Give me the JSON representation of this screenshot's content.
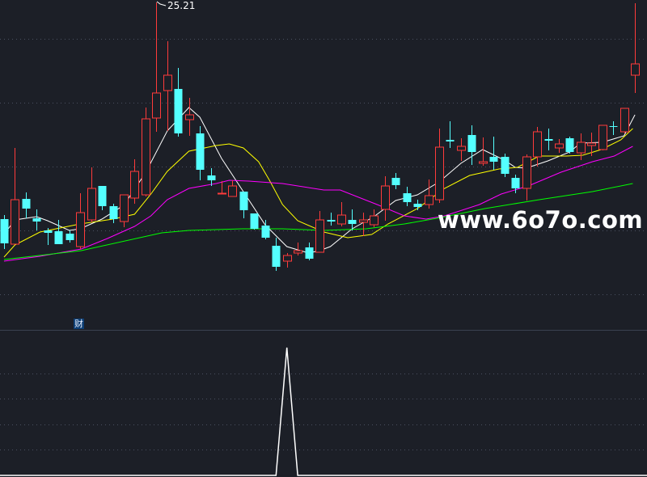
{
  "chart_data": {
    "type": "candlestick",
    "title": "",
    "up_color": "#ff3b3b",
    "down_color": "#54ffff",
    "max_label": "25.21",
    "grid": true,
    "candles": [
      [
        11.81,
        10.31,
        12.06,
        9.96
      ],
      [
        10.26,
        13.01,
        16.21,
        10.26
      ],
      [
        13.06,
        12.46,
        13.46,
        11.86
      ],
      [
        11.86,
        11.66,
        12.41,
        11.11
      ],
      [
        11.11,
        10.96,
        11.26,
        10.21
      ],
      [
        11.06,
        10.26,
        11.76,
        10.26
      ],
      [
        10.91,
        10.51,
        11.11,
        10.36
      ],
      [
        10.11,
        12.21,
        13.41,
        9.96
      ],
      [
        11.76,
        13.71,
        15.01,
        11.61
      ],
      [
        13.86,
        12.61,
        13.86,
        12.36
      ],
      [
        12.61,
        11.81,
        12.76,
        11.56
      ],
      [
        11.66,
        13.31,
        13.31,
        11.31
      ],
      [
        13.11,
        14.76,
        15.51,
        12.76
      ],
      [
        13.31,
        18.01,
        18.71,
        13.21
      ],
      [
        18.06,
        19.61,
        25.21,
        17.21
      ],
      [
        19.76,
        20.71,
        22.81,
        17.26
      ],
      [
        19.86,
        17.11,
        21.16,
        16.91
      ],
      [
        17.96,
        18.26,
        19.31,
        16.96
      ],
      [
        17.11,
        14.86,
        17.56,
        14.21
      ],
      [
        14.51,
        14.21,
        14.96,
        13.86
      ],
      [
        13.36,
        13.41,
        14.16,
        13.36
      ],
      [
        13.21,
        13.86,
        14.21,
        13.21
      ],
      [
        13.51,
        12.36,
        13.51,
        11.86
      ],
      [
        12.16,
        11.21,
        12.16,
        11.16
      ],
      [
        11.41,
        10.66,
        11.76,
        10.56
      ],
      [
        10.16,
        8.86,
        10.66,
        8.61
      ],
      [
        9.21,
        9.56,
        9.71,
        8.81
      ],
      [
        9.71,
        9.86,
        10.36,
        9.56
      ],
      [
        10.06,
        9.36,
        10.36,
        9.26
      ],
      [
        9.76,
        11.76,
        12.31,
        9.76
      ],
      [
        11.76,
        11.66,
        12.21,
        11.41
      ],
      [
        11.51,
        12.06,
        12.86,
        11.36
      ],
      [
        11.76,
        11.51,
        12.41,
        11.11
      ],
      [
        11.61,
        11.76,
        12.21,
        10.76
      ],
      [
        11.46,
        12.01,
        12.41,
        11.31
      ],
      [
        12.41,
        13.86,
        14.46,
        11.71
      ],
      [
        14.36,
        13.91,
        14.66,
        13.66
      ],
      [
        13.41,
        12.86,
        13.81,
        12.61
      ],
      [
        12.76,
        12.56,
        13.01,
        12.36
      ],
      [
        12.71,
        13.26,
        14.26,
        12.46
      ],
      [
        13.01,
        16.26,
        17.41,
        12.81
      ],
      [
        16.71,
        16.61,
        17.86,
        16.21
      ],
      [
        16.06,
        16.31,
        16.81,
        15.41
      ],
      [
        17.01,
        15.96,
        17.61,
        15.16
      ],
      [
        15.26,
        15.36,
        16.86,
        15.11
      ],
      [
        15.66,
        15.36,
        16.91,
        14.86
      ],
      [
        15.66,
        14.61,
        15.86,
        14.41
      ],
      [
        14.36,
        13.71,
        14.56,
        13.41
      ],
      [
        13.71,
        15.66,
        15.81,
        12.96
      ],
      [
        15.66,
        17.21,
        17.51,
        15.06
      ],
      [
        16.76,
        16.66,
        17.41,
        16.06
      ],
      [
        16.21,
        16.46,
        16.76,
        15.91
      ],
      [
        16.81,
        15.96,
        16.91,
        15.86
      ],
      [
        15.91,
        16.56,
        17.11,
        15.46
      ],
      [
        16.36,
        16.51,
        17.16,
        15.71
      ],
      [
        16.11,
        17.61,
        17.61,
        16.06
      ],
      [
        17.56,
        17.51,
        17.86,
        17.01
      ],
      [
        17.21,
        18.66,
        18.66,
        17.11
      ],
      [
        20.71,
        21.41,
        25.16,
        19.61
      ]
    ],
    "ma_lines": [
      {
        "color": "#ffffff",
        "points": [
          [
            0,
            10.86
          ],
          [
            1,
            11.76
          ],
          [
            3,
            11.96
          ],
          [
            4,
            11.71
          ],
          [
            6,
            11.11
          ],
          [
            7,
            11.21
          ],
          [
            9,
            11.81
          ],
          [
            11,
            12.66
          ],
          [
            13,
            14.66
          ],
          [
            15,
            17.26
          ],
          [
            17,
            18.71
          ],
          [
            18,
            18.11
          ],
          [
            20,
            15.56
          ],
          [
            22,
            13.51
          ],
          [
            24,
            11.46
          ],
          [
            26,
            10.11
          ],
          [
            28,
            9.71
          ],
          [
            29,
            9.86
          ],
          [
            30,
            10.11
          ],
          [
            32,
            11.21
          ],
          [
            34,
            11.96
          ],
          [
            36,
            12.96
          ],
          [
            38,
            13.31
          ],
          [
            40,
            14.11
          ],
          [
            42,
            15.26
          ],
          [
            44,
            16.11
          ],
          [
            46,
            15.46
          ],
          [
            47,
            15.01
          ],
          [
            48,
            14.96
          ],
          [
            50,
            15.41
          ],
          [
            52,
            15.96
          ],
          [
            53,
            16.51
          ],
          [
            55,
            16.56
          ],
          [
            57,
            16.96
          ],
          [
            58,
            18.26
          ]
        ]
      },
      {
        "color": "#ffff00",
        "points": [
          [
            0,
            9.46
          ],
          [
            1,
            10.21
          ],
          [
            3.3,
            11.01
          ],
          [
            7,
            11.51
          ],
          [
            10,
            11.81
          ],
          [
            12,
            12.11
          ],
          [
            13.5,
            13.36
          ],
          [
            15,
            14.76
          ],
          [
            17,
            16.01
          ],
          [
            19.5,
            16.36
          ],
          [
            20.7,
            16.46
          ],
          [
            22,
            16.21
          ],
          [
            23.4,
            15.36
          ],
          [
            24.4,
            14.21
          ],
          [
            25.6,
            12.71
          ],
          [
            27,
            11.71
          ],
          [
            29.4,
            11.01
          ],
          [
            31.6,
            10.66
          ],
          [
            33.8,
            10.86
          ],
          [
            35.3,
            11.51
          ],
          [
            38,
            12.46
          ],
          [
            40.5,
            13.71
          ],
          [
            42.8,
            14.51
          ],
          [
            45.5,
            14.91
          ],
          [
            47.2,
            15.01
          ],
          [
            49.2,
            15.71
          ],
          [
            51.7,
            15.71
          ],
          [
            53.2,
            15.76
          ],
          [
            54.9,
            16.11
          ],
          [
            56.7,
            16.71
          ],
          [
            57.8,
            17.41
          ]
        ]
      },
      {
        "color": "#ff00ff",
        "points": [
          [
            0,
            9.21
          ],
          [
            3.3,
            9.51
          ],
          [
            7.1,
            9.96
          ],
          [
            9.5,
            10.61
          ],
          [
            12,
            11.36
          ],
          [
            13.5,
            12.01
          ],
          [
            15,
            13.01
          ],
          [
            17,
            13.71
          ],
          [
            19.5,
            14.01
          ],
          [
            20.7,
            14.21
          ],
          [
            22.5,
            14.16
          ],
          [
            25.6,
            14.01
          ],
          [
            29.4,
            13.61
          ],
          [
            30.9,
            13.61
          ],
          [
            34.3,
            12.71
          ],
          [
            36.8,
            12.01
          ],
          [
            38.8,
            11.81
          ],
          [
            40.5,
            12.01
          ],
          [
            43.7,
            12.71
          ],
          [
            45.7,
            13.36
          ],
          [
            48.2,
            13.86
          ],
          [
            51.2,
            14.71
          ],
          [
            54.1,
            15.36
          ],
          [
            56.1,
            15.71
          ],
          [
            57.8,
            16.31
          ]
        ]
      },
      {
        "color": "#00ff00",
        "points": [
          [
            0,
            9.31
          ],
          [
            7.1,
            9.86
          ],
          [
            14.5,
            10.96
          ],
          [
            17,
            11.11
          ],
          [
            21.9,
            11.21
          ],
          [
            25.6,
            11.21
          ],
          [
            29.4,
            11.11
          ],
          [
            33.3,
            11.21
          ],
          [
            36.8,
            11.51
          ],
          [
            39.8,
            11.86
          ],
          [
            44.2,
            12.46
          ],
          [
            49.2,
            13.01
          ],
          [
            54.1,
            13.51
          ],
          [
            57.8,
            14.01
          ]
        ]
      }
    ],
    "indicator": {
      "tag": "财",
      "color": "#ffffff",
      "values": [
        0,
        0,
        0,
        0,
        0,
        0,
        0,
        0,
        0,
        0,
        0,
        0,
        0,
        0,
        0,
        0,
        0,
        0,
        0,
        0,
        0,
        0,
        0,
        0,
        0,
        0,
        1,
        0,
        0,
        0,
        0,
        0,
        0,
        0,
        0,
        0,
        0,
        0,
        0,
        0,
        0,
        0,
        0,
        0,
        0,
        0,
        0,
        0,
        0,
        0,
        0,
        0,
        0,
        0,
        0,
        0,
        0,
        0,
        0
      ]
    }
  },
  "watermark": "www.6o7o.com"
}
